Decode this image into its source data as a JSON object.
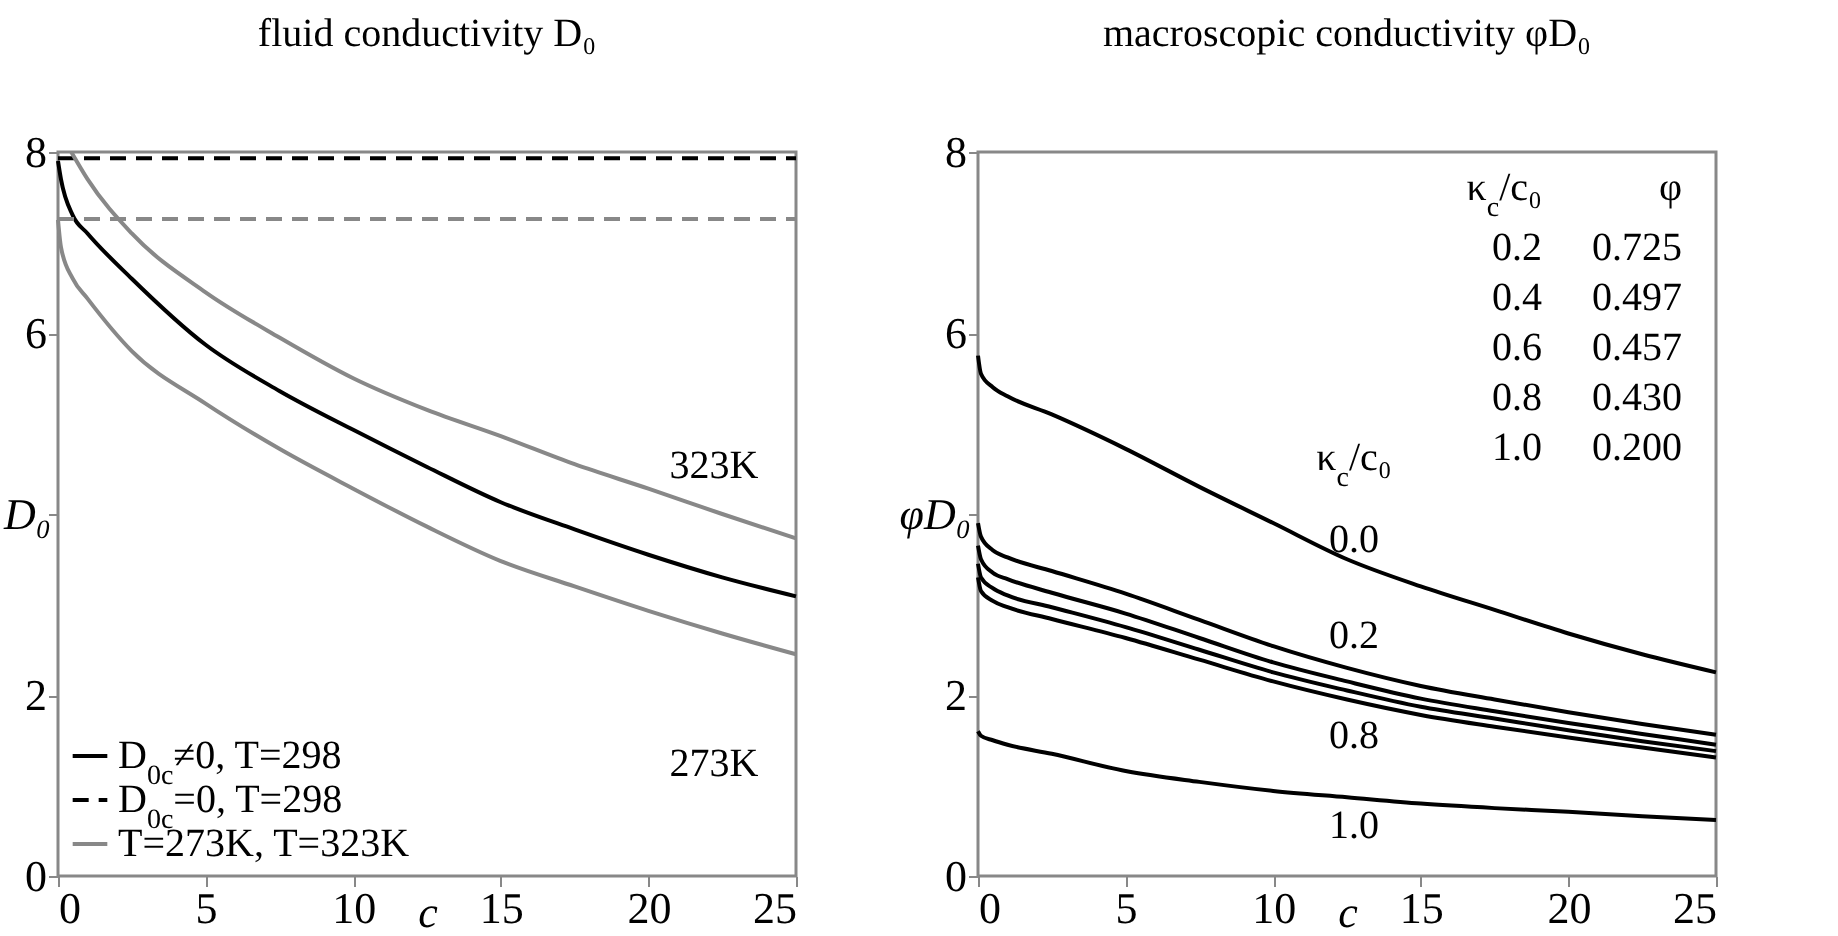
{
  "chart_data": [
    {
      "type": "line",
      "title": "fluid conductivity D₀",
      "xlabel": "c",
      "ylabel": "D₀",
      "x": [
        0,
        0.1,
        0.5,
        1,
        2.5,
        5,
        7.5,
        10,
        12.5,
        15,
        17.5,
        20,
        22.5,
        25
      ],
      "xlim": [
        0,
        25
      ],
      "ylim": [
        0,
        8
      ],
      "xticks": [
        0,
        5,
        10,
        15,
        20,
        25
      ],
      "yticks": [
        0,
        2,
        {
          "value": 4,
          "label": null
        },
        6,
        8
      ],
      "legend": "bottom left",
      "grid": false,
      "series": [
        {
          "name": "D$_{0c}$≠0, T=298",
          "color": "#000000",
          "line_style": "solid",
          "values": [
            7.9,
            7.7,
            7.3,
            7.1,
            6.6,
            5.87,
            5.36,
            4.93,
            4.52,
            4.13,
            3.83,
            3.55,
            3.3,
            3.09
          ]
        },
        {
          "name": "D$_{0c}$=0, T=298",
          "color": "#000000",
          "line_style": "dashed",
          "x": [
            0,
            25
          ],
          "values": [
            7.93,
            7.93
          ]
        },
        {
          "name": "T=273K, T=323K",
          "color": "#888888",
          "line_style": "solid",
          "values": [
            7.25,
            6.95,
            6.6,
            6.38,
            5.8,
            5.22,
            4.72,
            4.28,
            3.86,
            3.48,
            3.2,
            2.93,
            2.68,
            2.45
          ]
        },
        {
          "color": "#888888",
          "line_style": "solid",
          "x": [
            0.45,
            1,
            2.5,
            5,
            7.5,
            10,
            12.5,
            15,
            17.5,
            20,
            22.5,
            25
          ],
          "values": [
            8.0,
            7.7,
            7.1,
            6.45,
            5.95,
            5.5,
            5.15,
            4.86,
            4.55,
            4.28,
            4.0,
            3.73
          ]
        },
        {
          "color": "#888888",
          "line_style": "dashed",
          "x": [
            0,
            25
          ],
          "values": [
            7.26,
            7.26
          ]
        }
      ],
      "annotations": [
        "323K",
        "273K"
      ]
    },
    {
      "type": "line",
      "title": "macroscopic conductivity φD₀",
      "xlabel": "c",
      "ylabel": "φD₀",
      "x": [
        0,
        0.1,
        0.5,
        1,
        2.5,
        5,
        7.5,
        10,
        12.5,
        15,
        17.5,
        20,
        22.5,
        25
      ],
      "xlim": [
        0,
        25
      ],
      "ylim": [
        0,
        8
      ],
      "xticks": [
        0,
        5,
        10,
        15,
        20,
        25
      ],
      "yticks": [
        0,
        2,
        {
          "value": 4,
          "label": null
        },
        6,
        8
      ],
      "grid": false,
      "series": [
        {
          "color": "#000000",
          "line_style": "solid",
          "values": [
            5.75,
            5.55,
            5.4,
            5.3,
            5.1,
            4.72,
            4.3,
            3.9,
            3.5,
            3.2,
            2.94,
            2.68,
            2.45,
            2.25
          ]
        },
        {
          "color": "#000000",
          "line_style": "solid",
          "values": [
            3.9,
            3.75,
            3.6,
            3.52,
            3.37,
            3.12,
            2.83,
            2.54,
            2.3,
            2.1,
            1.95,
            1.81,
            1.68,
            1.56
          ]
        },
        {
          "color": "#000000",
          "line_style": "solid",
          "values": [
            3.65,
            3.5,
            3.35,
            3.28,
            3.13,
            2.9,
            2.63,
            2.36,
            2.15,
            1.96,
            1.82,
            1.69,
            1.57,
            1.45
          ]
        },
        {
          "color": "#000000",
          "line_style": "solid",
          "values": [
            3.45,
            3.3,
            3.18,
            3.1,
            2.97,
            2.75,
            2.5,
            2.25,
            2.05,
            1.87,
            1.74,
            1.61,
            1.49,
            1.38
          ]
        },
        {
          "color": "#000000",
          "line_style": "solid",
          "values": [
            3.3,
            3.15,
            3.04,
            2.97,
            2.84,
            2.63,
            2.39,
            2.15,
            1.95,
            1.78,
            1.65,
            1.53,
            1.42,
            1.31
          ]
        },
        {
          "color": "#000000",
          "line_style": "solid",
          "values": [
            1.6,
            1.55,
            1.5,
            1.45,
            1.35,
            1.16,
            1.04,
            0.94,
            0.87,
            0.8,
            0.75,
            0.71,
            0.66,
            0.62
          ]
        }
      ],
      "annotations": [
        "κ$_{c}$/c₀",
        "φ",
        "0.2",
        "0.725",
        "0.4",
        "0.497",
        "0.6",
        "0.457",
        "0.8",
        "0.430",
        "1.0",
        "0.200",
        "κ$_{c}$/c₀",
        "0.0",
        "0.2",
        "0.8",
        "1.0"
      ]
    }
  ]
}
